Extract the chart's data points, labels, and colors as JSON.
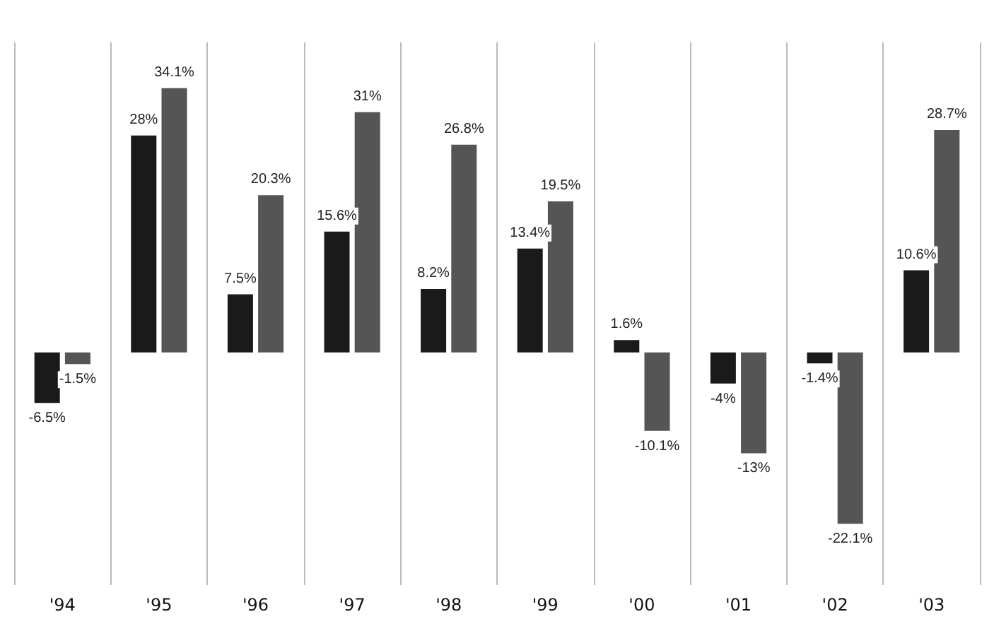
{
  "chart_data": {
    "type": "bar",
    "categories": [
      "'94",
      "'95",
      "'96",
      "'97",
      "'98",
      "'99",
      "'00",
      "'01",
      "'02",
      "'03"
    ],
    "series": [
      {
        "color": "#1a1a1a",
        "values": [
          -6.5,
          28,
          7.5,
          15.6,
          8.2,
          13.4,
          1.6,
          -4,
          -1.4,
          10.6
        ],
        "value_labels": [
          "-6.5%",
          "28%",
          "7.5%",
          "15.6%",
          "8.2%",
          "13.4%",
          "1.6%",
          "-4%",
          "-1.4%",
          "10.6%"
        ]
      },
      {
        "color": "#555555",
        "values": [
          -1.5,
          34.1,
          20.3,
          31,
          26.8,
          19.5,
          -10.1,
          -13,
          -22.1,
          28.7
        ],
        "value_labels": [
          "-1.5%",
          "34.1%",
          "20.3%",
          "31%",
          "26.8%",
          "19.5%",
          "-10.1%",
          "-13%",
          "-22.1%",
          "28.7%"
        ]
      }
    ],
    "grid": "x"
  }
}
